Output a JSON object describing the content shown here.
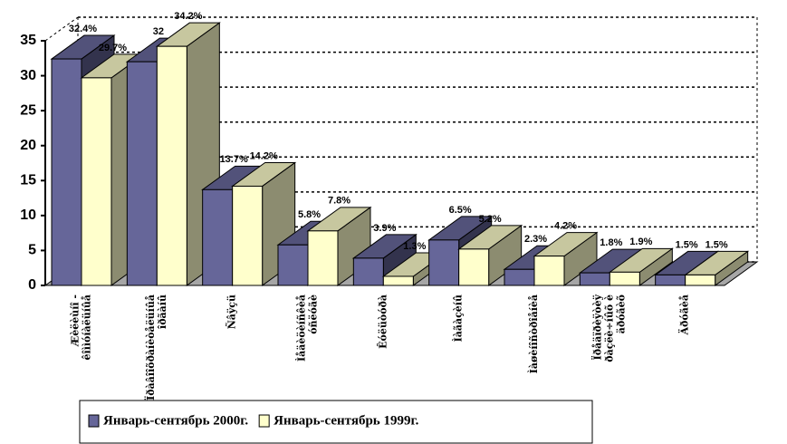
{
  "chart_data": {
    "type": "bar3d",
    "categories": [
      [
        "Æèëèùíî -",
        "êîììóíàëüíûå"
      ],
      [
        "Ïðàâîîõðàíèòåëüíûå",
        "îðãàíû"
      ],
      [
        "Ñâÿçü"
      ],
      [
        "Ìåäèöèíñêèå",
        "óñëóãè"
      ],
      [
        "Êóëüòóðà"
      ],
      [
        "Ìàãàçèíû"
      ],
      [
        "Ìàøèíîñòðîåíèå"
      ],
      [
        "Ïðåäïðèÿòèÿ",
        "ðàçëè÷íûõ è",
        "äðóãèõ"
      ],
      [
        "Äðóãèå"
      ]
    ],
    "series": [
      {
        "name": "Январь-сентябрь 2000г.",
        "color": "#666699",
        "values": [
          32.4,
          32,
          13.7,
          5.8,
          3.9,
          6.5,
          2.3,
          1.8,
          1.5
        ],
        "value_labels": [
          "32.4%",
          "32",
          "13.7%",
          "5.8%",
          "3.9%",
          "6.5%",
          "2.3%",
          "1.8%",
          "1.5%"
        ]
      },
      {
        "name": "Январь-сентябрь 1999г.",
        "color": "#ffffcc",
        "values": [
          29.7,
          34.2,
          14.2,
          7.8,
          1.3,
          5.2,
          4.2,
          1.9,
          1.5
        ],
        "value_labels": [
          "29.7%",
          "34.2%",
          "14.2%",
          "7.8%",
          "1.3%",
          "5.2%",
          "4.2%",
          "1.9%",
          "1.5%"
        ]
      }
    ],
    "ylim": [
      0,
      35
    ],
    "yticks": [
      0,
      5,
      10,
      15,
      20,
      25,
      30,
      35
    ],
    "grid": true,
    "legend": "bottom"
  }
}
